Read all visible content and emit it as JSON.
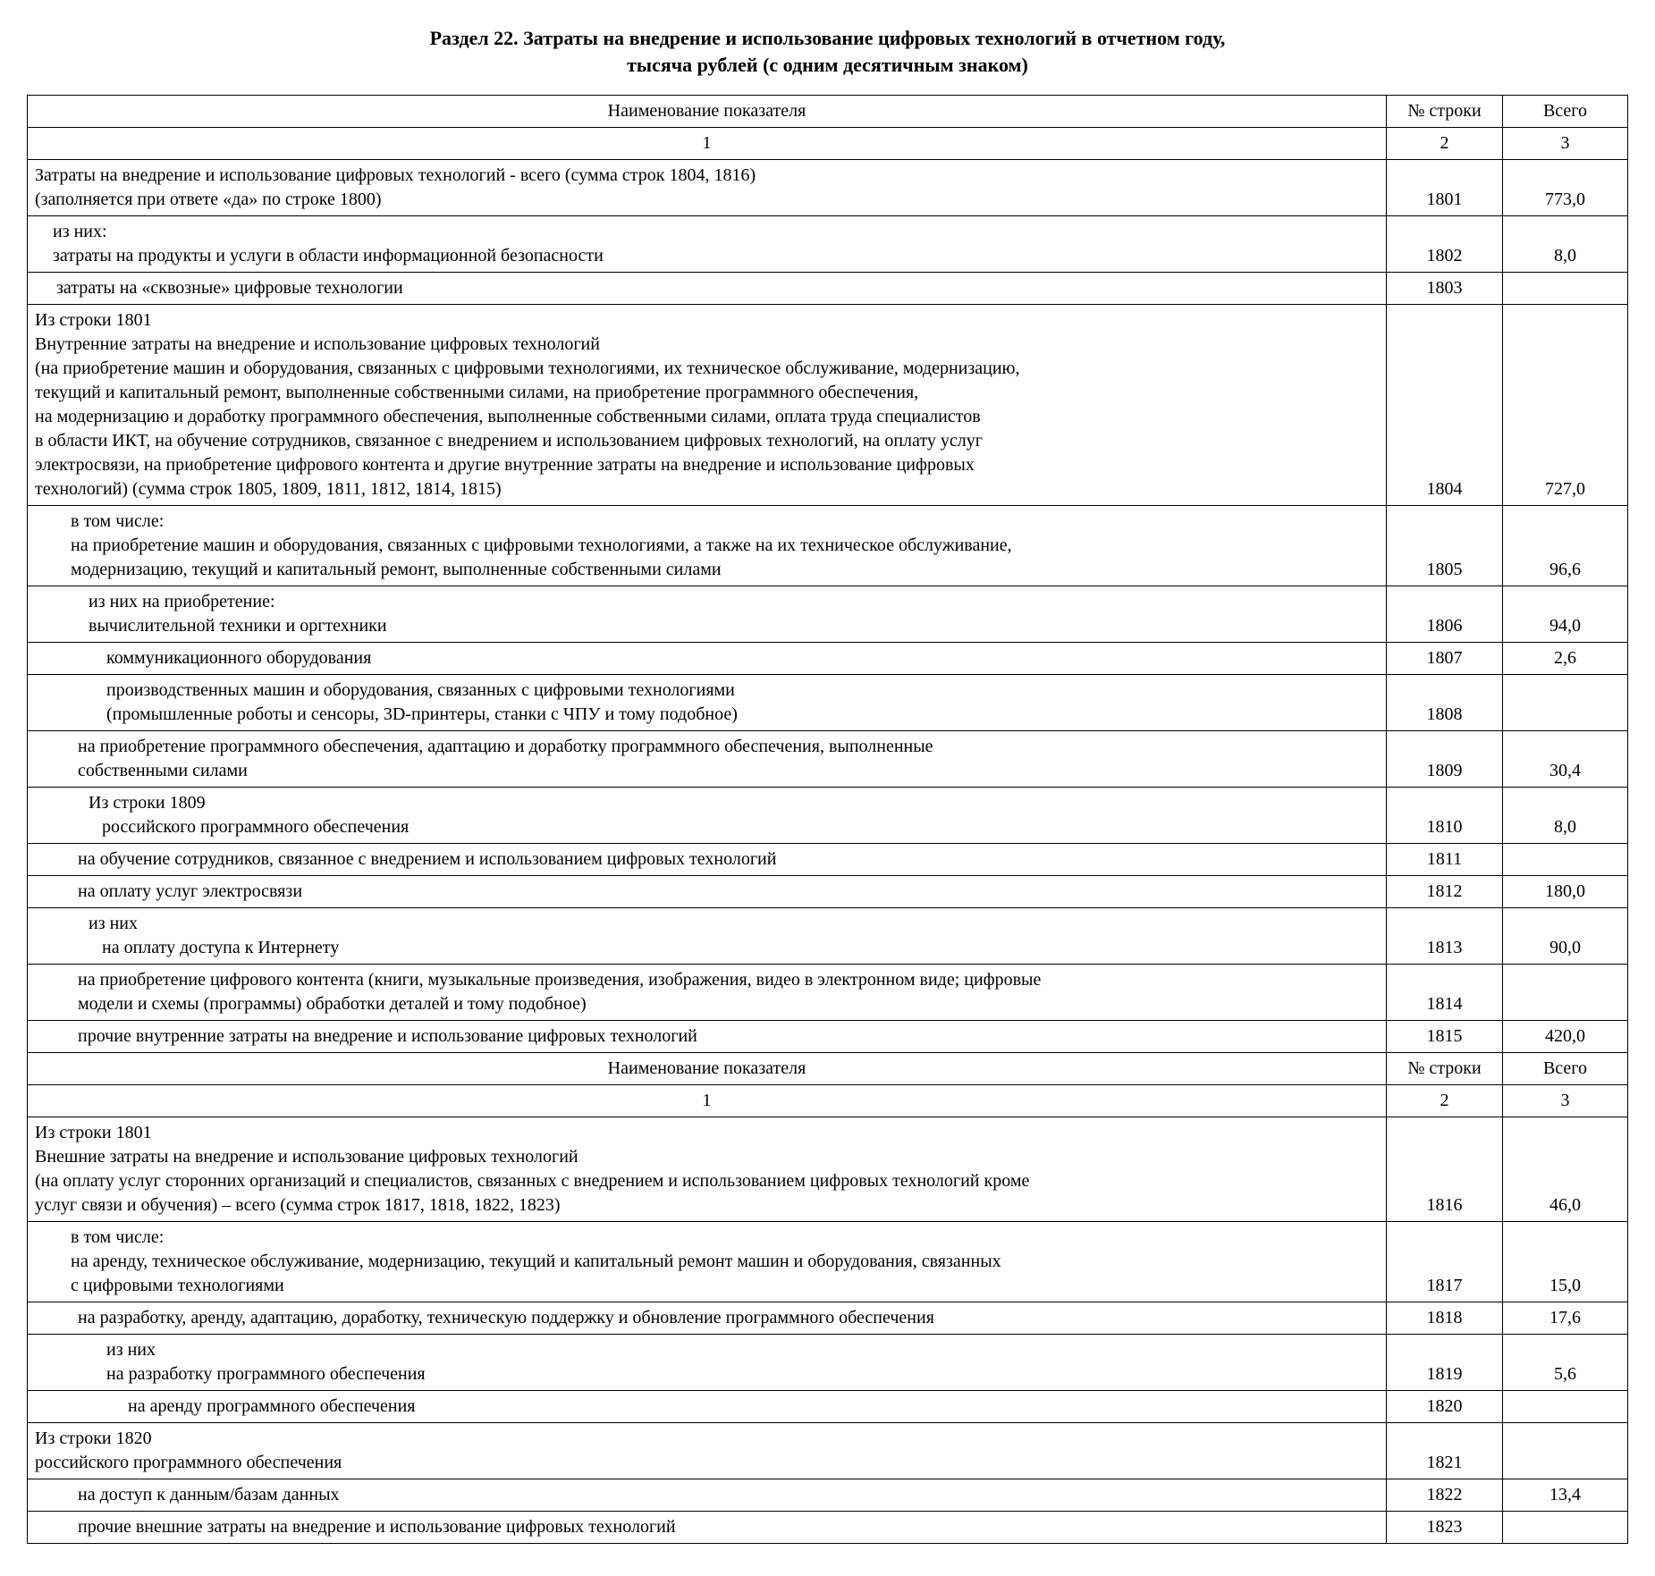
{
  "title": "Раздел 22. Затраты на внедрение и использование цифровых технологий в отчетном году,",
  "subtitle": "тысяча рублей (с одним десятичным знаком)",
  "columns": {
    "name": "Наименование показателя",
    "row": "№ строки",
    "total": "Всего",
    "c1": "1",
    "c2": "2",
    "c3": "3"
  },
  "rows": [
    {
      "id": "r1801",
      "indent": 0,
      "num": "1801",
      "total": "773,0",
      "lines": [
        "Затраты на внедрение и использование цифровых технологий - всего (сумма строк 1804, 1816)",
        "(заполняется при ответе «да» по строке 1800)"
      ]
    },
    {
      "id": "r1802",
      "indent": 0,
      "num": "1802",
      "total": "8,0",
      "lines": [
        "    из них:",
        "    затраты на продукты и услуги в области информационной безопасности"
      ]
    },
    {
      "id": "r1803",
      "indent": 1,
      "num": "1803",
      "total": "",
      "lines": [
        "затраты на «сквозные» цифровые технологии"
      ]
    },
    {
      "id": "r1804",
      "indent": 0,
      "num": "1804",
      "total": "727,0",
      "lines": [
        "Из строки 1801",
        "Внутренние затраты на внедрение и использование цифровых технологий",
        "(на приобретение машин и оборудования, связанных с цифровыми технологиями, их техническое обслуживание, модернизацию,",
        "текущий и капитальный ремонт, выполненные собственными силами, на приобретение программного обеспечения,",
        "на модернизацию и доработку программного обеспечения, выполненные собственными силами, оплата труда специалистов",
        "в области ИКТ, на обучение сотрудников, связанное с внедрением и использованием цифровых технологий, на оплату услуг",
        "электросвязи, на приобретение цифрового контента и другие внутренние затраты на внедрение и использование цифровых",
        "технологий) (сумма строк 1805, 1809, 1811, 1812, 1814, 1815)"
      ]
    },
    {
      "id": "r1805",
      "indent": 0,
      "num": "1805",
      "total": "96,6",
      "lines": [
        "        в том числе:",
        "        на приобретение машин и оборудования, связанных с цифровыми технологиями, а также на их техническое обслуживание,",
        "        модернизацию, текущий и капитальный ремонт, выполненные собственными силами"
      ]
    },
    {
      "id": "r1806",
      "indent": 0,
      "num": "1806",
      "total": "94,0",
      "lines": [
        "            из них на приобретение:",
        "            вычислительной техники и оргтехники"
      ]
    },
    {
      "id": "r1807",
      "indent": 3,
      "num": "1807",
      "total": "2,6",
      "lines": [
        "коммуникационного оборудования"
      ]
    },
    {
      "id": "r1808",
      "indent": 3,
      "num": "1808",
      "total": "",
      "lines": [
        "производственных машин и оборудования, связанных с цифровыми технологиями",
        "(промышленные роботы и сенсоры, 3D-принтеры, станки с ЧПУ и тому подобное)"
      ]
    },
    {
      "id": "r1809",
      "indent": 2,
      "num": "1809",
      "total": "30,4",
      "lines": [
        "на приобретение программного обеспечения, адаптацию и доработку программного обеспечения, выполненные",
        "собственными силами"
      ]
    },
    {
      "id": "r1810",
      "indent": 0,
      "num": "1810",
      "total": "8,0",
      "lines": [
        "            Из строки 1809",
        "               российского программного обеспечения"
      ]
    },
    {
      "id": "r1811",
      "indent": 2,
      "num": "1811",
      "total": "",
      "lines": [
        "на обучение сотрудников, связанное с внедрением и использованием цифровых технологий"
      ]
    },
    {
      "id": "r1812",
      "indent": 2,
      "num": "1812",
      "total": "180,0",
      "lines": [
        "на оплату услуг электросвязи"
      ]
    },
    {
      "id": "r1813",
      "indent": 0,
      "num": "1813",
      "total": "90,0",
      "lines": [
        "            из них",
        "               на оплату доступа к Интернету"
      ]
    },
    {
      "id": "r1814",
      "indent": 2,
      "num": "1814",
      "total": "",
      "lines": [
        "на приобретение цифрового контента (книги, музыкальные произведения, изображения, видео в электронном виде; цифровые",
        "модели и схемы (программы) обработки деталей и тому подобное)"
      ]
    },
    {
      "id": "r1815",
      "indent": 2,
      "num": "1815",
      "total": "420,0",
      "lines": [
        "прочие внутренние затраты на внедрение и использование цифровых технологий"
      ]
    }
  ],
  "rows2": [
    {
      "id": "r1816",
      "indent": 0,
      "num": "1816",
      "total": "46,0",
      "lines": [
        "Из строки 1801",
        "Внешние затраты на внедрение и использование цифровых технологий",
        "(на оплату услуг сторонних организаций и специалистов, связанных с внедрением и использованием цифровых технологий кроме",
        "услуг связи и обучения) – всего (сумма строк 1817, 1818, 1822, 1823)"
      ]
    },
    {
      "id": "r1817",
      "indent": 0,
      "num": "1817",
      "total": "15,0",
      "lines": [
        "        в том числе:",
        "        на аренду, техническое обслуживание, модернизацию, текущий и капитальный ремонт машин и оборудования, связанных",
        "        с цифровыми технологиями"
      ]
    },
    {
      "id": "r1818",
      "indent": 2,
      "num": "1818",
      "total": "17,6",
      "lines": [
        "на разработку, аренду, адаптацию, доработку, техническую поддержку и обновление программного обеспечения"
      ]
    },
    {
      "id": "r1819",
      "indent": 0,
      "num": "1819",
      "total": "5,6",
      "lines": [
        "                из них",
        "                на разработку программного обеспечения"
      ]
    },
    {
      "id": "r1820",
      "indent": 4,
      "num": "1820",
      "total": "",
      "lines": [
        "на аренду программного обеспечения"
      ]
    },
    {
      "id": "r1821",
      "indent": 0,
      "num": "1821",
      "total": "",
      "lines": [
        "Из строки 1820",
        "российского программного обеспечения"
      ]
    },
    {
      "id": "r1822",
      "indent": 2,
      "num": "1822",
      "total": "13,4",
      "lines": [
        "на доступ к данным/базам данных"
      ]
    },
    {
      "id": "r1823",
      "indent": 2,
      "num": "1823",
      "total": "",
      "lines": [
        "прочие внешние затраты на внедрение и использование цифровых технологий"
      ]
    }
  ]
}
